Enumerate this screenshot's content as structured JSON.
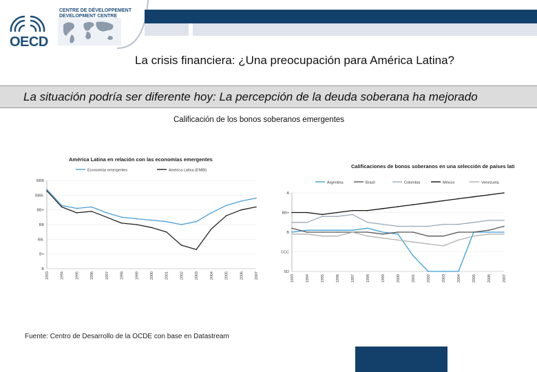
{
  "header": {
    "logo_text": "OECD",
    "org_lines": [
      "CENTRE DE DÉVELOPPEMENT",
      "DEVELOPMENT CENTRE"
    ],
    "brand_color": "#12406b"
  },
  "main_title": "La crisis financiera: ¿Una preocupación para América Latina?",
  "subtitle": "La situación podría ser diferente hoy:  La percepción de la deuda soberana ha mejorado",
  "caption": "Calificación de los bonos soberanos emergentes",
  "source": "Fuente:  Centro de Desarrollo de la OCDE con base en Datastream",
  "chart_data": [
    {
      "type": "line",
      "title": "América Latina en relación con las economías emergentes",
      "x": [
        1993,
        1994,
        1995,
        1996,
        1997,
        1998,
        1999,
        2000,
        2001,
        2002,
        2003,
        2004,
        2005,
        2006,
        2007
      ],
      "x_tick_labels": [
        "1993",
        "1994",
        "1995",
        "1996",
        "1997",
        "1998",
        "1999",
        "2000",
        "2001",
        "2002",
        "2003",
        "2004",
        "2005",
        "2006",
        "2007"
      ],
      "y_tick_labels": [
        "B",
        "B+",
        "BB-",
        "BB",
        "BB+",
        "BBB-",
        "BBB"
      ],
      "y_scale": [
        1,
        7
      ],
      "series": [
        {
          "name": "Economías emergentes",
          "color": "#4a9fd8",
          "values": [
            6.4,
            5.3,
            5.1,
            5.2,
            4.8,
            4.5,
            4.4,
            4.3,
            4.2,
            4.0,
            4.2,
            4.8,
            5.3,
            5.6,
            5.8
          ]
        },
        {
          "name": "América Latina (EMBI)",
          "color": "#222222",
          "values": [
            6.3,
            5.2,
            4.8,
            4.9,
            4.5,
            4.1,
            4.0,
            3.8,
            3.5,
            2.6,
            2.3,
            3.7,
            4.6,
            5.0,
            5.2
          ]
        }
      ],
      "legend": "top"
    },
    {
      "type": "line",
      "title": "Calificaciones de bonos soberanos en una selección de países latinoamericanos",
      "x": [
        1993,
        1994,
        1995,
        1996,
        1997,
        1998,
        1999,
        2000,
        2001,
        2002,
        2003,
        2004,
        2005,
        2006,
        2007
      ],
      "x_tick_labels": [
        "1993",
        "1994",
        "1995",
        "1996",
        "1997",
        "1998",
        "1999",
        "2000",
        "2001",
        "2002",
        "2003",
        "2004",
        "2005",
        "2006",
        "2007"
      ],
      "y_tick_labels": [
        "SD",
        "CCC",
        "B",
        "BB+",
        "A"
      ],
      "y_scale": [
        0,
        4
      ],
      "series": [
        {
          "name": "Argentina",
          "color": "#3b9fd6",
          "values": [
            2.0,
            2.1,
            2.1,
            2.1,
            2.1,
            2.2,
            2.0,
            1.9,
            0.8,
            0.0,
            0.0,
            0.0,
            2.0,
            2.0,
            2.0
          ]
        },
        {
          "name": "Brasil",
          "color": "#555555",
          "values": [
            2.2,
            2.0,
            2.0,
            2.0,
            2.0,
            2.0,
            1.9,
            2.0,
            2.0,
            1.8,
            1.8,
            2.0,
            2.0,
            2.1,
            2.3
          ]
        },
        {
          "name": "Colombia",
          "color": "#9aa9b8",
          "values": [
            2.5,
            2.5,
            2.8,
            2.8,
            2.9,
            2.5,
            2.4,
            2.3,
            2.3,
            2.3,
            2.4,
            2.4,
            2.5,
            2.6,
            2.6
          ]
        },
        {
          "name": "México",
          "color": "#111111",
          "values": [
            3.0,
            3.0,
            2.9,
            3.0,
            3.1,
            3.1,
            3.2,
            3.3,
            3.4,
            3.5,
            3.6,
            3.7,
            3.8,
            3.9,
            4.0
          ]
        },
        {
          "name": "Venezuela",
          "color": "#b0b0b0",
          "values": [
            1.9,
            1.9,
            1.8,
            1.8,
            2.0,
            1.8,
            1.7,
            1.6,
            1.5,
            1.4,
            1.3,
            1.6,
            1.8,
            1.9,
            1.9
          ]
        }
      ],
      "legend": "top"
    }
  ]
}
